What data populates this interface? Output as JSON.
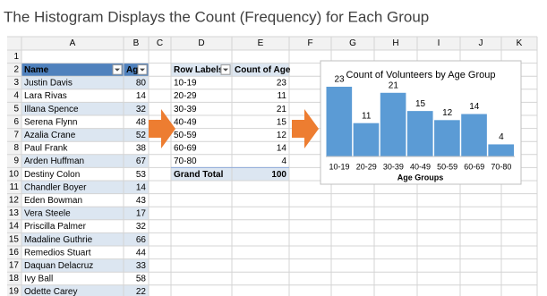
{
  "header": {
    "title": "The Histogram Displays the Count (Frequency) for Each Group"
  },
  "sheet": {
    "columns": [
      "A",
      "B",
      "C",
      "D",
      "E",
      "F",
      "G",
      "H",
      "I",
      "J",
      "K"
    ],
    "row_numbers": [
      1,
      2,
      3,
      4,
      5,
      6,
      7,
      8,
      9,
      10,
      11,
      12,
      13,
      14,
      15,
      16,
      17,
      18,
      19
    ],
    "table": {
      "headers": [
        "Name",
        "Age"
      ],
      "rows": [
        [
          "Justin Davis",
          80
        ],
        [
          "Lara Rivas",
          14
        ],
        [
          "Illana Spence",
          32
        ],
        [
          "Serena Flynn",
          48
        ],
        [
          "Azalia Crane",
          52
        ],
        [
          "Paul Frank",
          38
        ],
        [
          "Arden Huffman",
          67
        ],
        [
          "Destiny Colon",
          53
        ],
        [
          "Chandler Boyer",
          14
        ],
        [
          "Eden Bowman",
          43
        ],
        [
          "Vera Steele",
          17
        ],
        [
          "Priscilla Palmer",
          32
        ],
        [
          "Madaline Guthrie",
          66
        ],
        [
          "Remedios Stuart",
          44
        ],
        [
          "Daquan Delacruz",
          33
        ],
        [
          "Ivy Ball",
          58
        ],
        [
          "Odette Carey",
          22
        ]
      ]
    },
    "pivot": {
      "headers": [
        "Row Labels",
        "Count of Age"
      ],
      "rows": [
        [
          "10-19",
          23
        ],
        [
          "20-29",
          11
        ],
        [
          "30-39",
          21
        ],
        [
          "40-49",
          15
        ],
        [
          "50-59",
          12
        ],
        [
          "60-69",
          14
        ],
        [
          "70-80",
          4
        ]
      ],
      "total": [
        "Grand Total",
        100
      ]
    }
  },
  "chart_data": {
    "type": "bar",
    "title": "Count of Volunteers by Age Group",
    "x_label": "Age Groups",
    "categories": [
      "10-19",
      "20-29",
      "30-39",
      "40-49",
      "50-59",
      "60-69",
      "70-80"
    ],
    "values": [
      23,
      11,
      21,
      15,
      12,
      14,
      4
    ],
    "color": "#5b9bd5"
  }
}
